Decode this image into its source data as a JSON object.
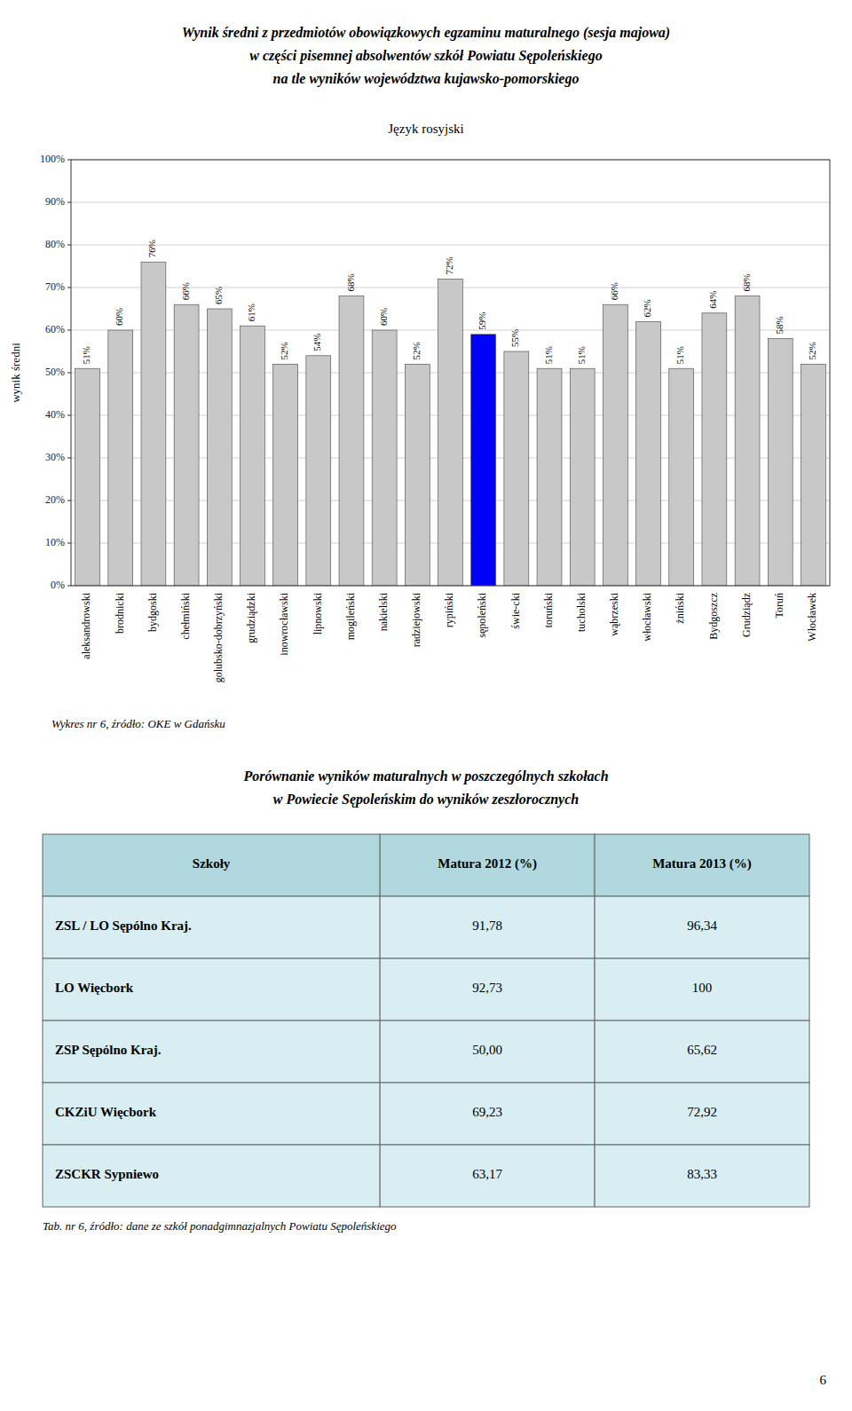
{
  "page_title": [
    "Wynik średni z przedmiotów obowiązkowych egzaminu maturalnego (sesja majowa)",
    "w części pisemnej absolwentów szkół Powiatu Sępoleńskiego",
    "na tle wyników województwa kujawsko-pomorskiego"
  ],
  "chart_data": {
    "type": "bar",
    "title": "Język rosyjski",
    "y_label": "wynik średni",
    "categories": [
      "aleksandrowski",
      "brodnicki",
      "bydgoski",
      "chełmiński",
      "golubsko-dobrzyński",
      "grudziądzki",
      "inowrocławski",
      "lipnowski",
      "mogileński",
      "nakielski",
      "radziejowski",
      "rypiński",
      "sępoleński",
      "świe-cki",
      "toruński",
      "tucholski",
      "wąbrzeski",
      "włocławski",
      "żniński",
      "Bydgoszcz",
      "Grudziądz",
      "Toruń",
      "Włocławek"
    ],
    "values": [
      51,
      60,
      76,
      66,
      65,
      61,
      52,
      54,
      68,
      60,
      52,
      72,
      59,
      55,
      51,
      51,
      66,
      62,
      51,
      64,
      68,
      58,
      52
    ],
    "value_labels": [
      "51%",
      "60%",
      "76%",
      "66%",
      "65%",
      "61%",
      "52%",
      "54%",
      "68%",
      "60%",
      "52%",
      "72%",
      "59%",
      "55%",
      "51%",
      "51%",
      "66%",
      "62%",
      "51%",
      "64%",
      "68%",
      "58%",
      "52%"
    ],
    "data_labels": true,
    "colors": [
      "#c8c8c8",
      "#c8c8c8",
      "#c8c8c8",
      "#c8c8c8",
      "#c8c8c8",
      "#c8c8c8",
      "#c8c8c8",
      "#c8c8c8",
      "#c8c8c8",
      "#c8c8c8",
      "#c8c8c8",
      "#c8c8c8",
      "#0000ff",
      "#c8c8c8",
      "#c8c8c8",
      "#c8c8c8",
      "#c8c8c8",
      "#c8c8c8",
      "#c8c8c8",
      "#c8c8c8",
      "#c8c8c8",
      "#c8c8c8",
      "#c8c8c8"
    ],
    "ylim": [
      0,
      100
    ],
    "yticks": [
      {
        "value": 0,
        "label": "0%"
      },
      {
        "value": 10,
        "label": "10%"
      },
      {
        "value": 20,
        "label": "20%"
      },
      {
        "value": 30,
        "label": "30%"
      },
      {
        "value": 40,
        "label": "40%"
      },
      {
        "value": 50,
        "label": "50%"
      },
      {
        "value": 60,
        "label": "60%"
      },
      {
        "value": 70,
        "label": "70%"
      },
      {
        "value": 80,
        "label": "80%"
      },
      {
        "value": 90,
        "label": "90%"
      },
      {
        "value": 100,
        "label": "100%"
      }
    ],
    "grid": true
  },
  "caption": "Wykres nr 6, źródło: OKE w Gdańsku",
  "table": {
    "title": [
      "Porównanie wyników maturalnych w poszczególnych szkołach",
      "w Powiecie Sępoleńskim do wyników zeszłorocznych"
    ],
    "headers": [
      "Szkoły",
      "Matura 2012 (%)",
      "Matura 2013 (%)"
    ],
    "rows": [
      [
        "ZSL / LO Sępólno Kraj.",
        "91,78",
        "96,34"
      ],
      [
        "LO Więcbork",
        "92,73",
        "100"
      ],
      [
        "ZSP Sępólno Kraj.",
        "50,00",
        "65,62"
      ],
      [
        "CKZiU Więcbork",
        "69,23",
        "72,92"
      ],
      [
        "ZSCKR Sypniewo",
        "63,17",
        "83,33"
      ]
    ],
    "header_color": "#b0d8de",
    "row_color": "#d8eef2",
    "caption": "Tab. nr 6, źródło: dane ze szkół ponadgimnazjalnych Powiatu Sępoleńskiego"
  },
  "page_number": "6"
}
